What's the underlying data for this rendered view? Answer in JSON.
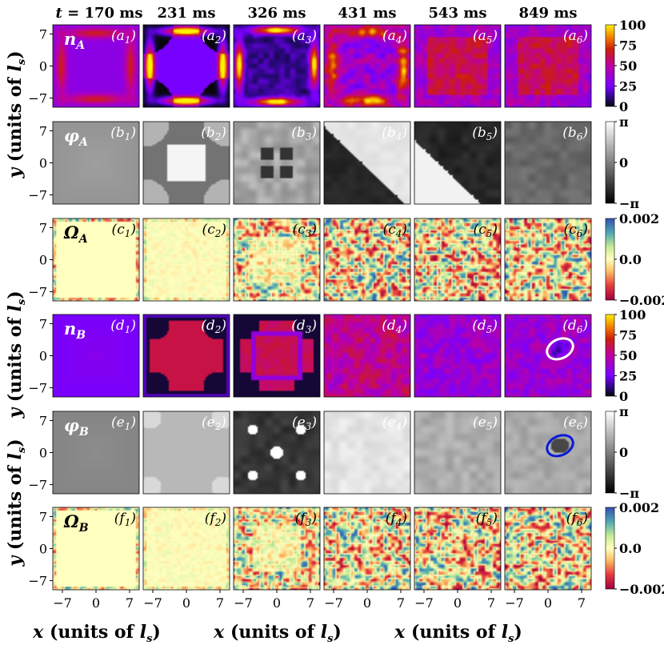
{
  "chart_data": {
    "type": "heatmap",
    "column_titles": [
      "t = 170 ms",
      "231 ms",
      "326 ms",
      "431 ms",
      "543 ms",
      "849 ms"
    ],
    "xlabel": "x (units of l_s)",
    "ylabel": "y (units of l_s)",
    "x_ticks": [
      "−7",
      "0",
      "7"
    ],
    "y_ticks": [
      "7",
      "0",
      "−7"
    ],
    "xlim": [
      -9,
      9
    ],
    "ylim": [
      -9,
      9
    ],
    "rows": [
      {
        "quantity": "n_A",
        "label_letter": "a",
        "colorbar": {
          "map": "plasma-like",
          "min": 0,
          "max": 100,
          "ticks": [
            "100",
            "75",
            "50",
            "25",
            "0"
          ]
        }
      },
      {
        "quantity": "φ_A",
        "label_letter": "b",
        "colorbar": {
          "map": "gray",
          "min": "−π",
          "max": "π",
          "ticks": [
            "π",
            "0",
            "−π"
          ]
        }
      },
      {
        "quantity": "Ω_A",
        "label_letter": "c",
        "colorbar": {
          "map": "spectral",
          "min": -0.002,
          "max": 0.002,
          "ticks": [
            "0.002",
            "0.0",
            "−0.002"
          ]
        }
      },
      {
        "quantity": "n_B",
        "label_letter": "d",
        "colorbar": {
          "map": "plasma-like",
          "min": 0,
          "max": 100,
          "ticks": [
            "100",
            "75",
            "50",
            "25",
            "0"
          ]
        }
      },
      {
        "quantity": "φ_B",
        "label_letter": "e",
        "colorbar": {
          "map": "gray",
          "min": "−π",
          "max": "π",
          "ticks": [
            "π",
            "0",
            "−π"
          ]
        }
      },
      {
        "quantity": "Ω_B",
        "label_letter": "f",
        "colorbar": {
          "map": "spectral",
          "min": -0.002,
          "max": 0.002,
          "ticks": [
            "0.002",
            "0.0",
            "−0.002"
          ]
        }
      }
    ],
    "annotations": [
      {
        "panel": "d6",
        "shape": "ellipse",
        "color": "#ffffff",
        "center": [
          2.5,
          1.5
        ]
      },
      {
        "panel": "e6",
        "shape": "ellipse",
        "color": "#0a1ad8",
        "center": [
          2.5,
          1.5
        ]
      }
    ]
  }
}
